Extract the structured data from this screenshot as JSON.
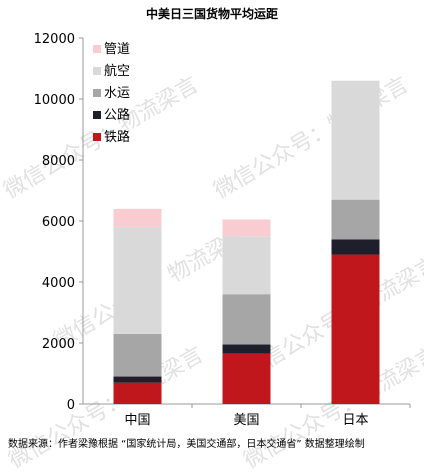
{
  "chart_data": {
    "type": "bar",
    "stacked": true,
    "title": "中美日三国货物平均运距",
    "categories": [
      "中国",
      "美国",
      "日本"
    ],
    "ylim": [
      0,
      12000
    ],
    "yticks": [
      "0",
      "2000",
      "4000",
      "6000",
      "8000",
      "10000",
      "12000"
    ],
    "legend_position": "top-left",
    "series": [
      {
        "name": "铁路",
        "color": "#c0171c",
        "values": [
          700,
          1650,
          4900
        ]
      },
      {
        "name": "公路",
        "color": "#1f1f2b",
        "values": [
          200,
          300,
          500
        ]
      },
      {
        "name": "水运",
        "color": "#a6a6a6",
        "values": [
          1400,
          1650,
          1300
        ]
      },
      {
        "name": "航空",
        "color": "#d9d9d9",
        "values": [
          3500,
          1900,
          3900
        ]
      },
      {
        "name": "管道",
        "color": "#f8ccd1",
        "values": [
          600,
          550,
          0
        ]
      }
    ],
    "legend_order": [
      "管道",
      "航空",
      "水运",
      "公路",
      "铁路"
    ],
    "source": "数据来源：作者梁豫根据 “国家统计局，美国交通部，日本交通省” 数据整理绘制",
    "watermark": "微信公众号：物流梁言"
  }
}
